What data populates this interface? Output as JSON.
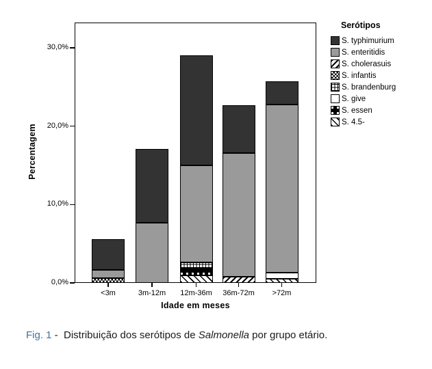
{
  "caption": {
    "fig_label": "Fig. 1",
    "separator": " -  ",
    "text_before": "Distribuição dos serótipos de ",
    "italic_word": "Salmonella",
    "text_after": " por grupo etário.",
    "fig_label_color": "#41719c"
  },
  "chart_data": {
    "type": "bar",
    "stacked": true,
    "title": "",
    "xlabel": "Idade em meses",
    "ylabel": "Percentagem",
    "legend_title": "Serótipos",
    "legend_position": "right",
    "grid": false,
    "ylim": [
      0,
      33.2
    ],
    "y_ticks": [
      {
        "label": "0,0%",
        "value": 0
      },
      {
        "label": "10,0%",
        "value": 10
      },
      {
        "label": "20,0%",
        "value": 20
      },
      {
        "label": "30,0%",
        "value": 30
      }
    ],
    "categories": [
      "<3m",
      "3m-12m",
      "12m-36m",
      "36m-72m",
      ">72m"
    ],
    "series": [
      {
        "name": "S. typhimurium",
        "swatch": "dark",
        "color": "#333333",
        "values": [
          3.9,
          9.4,
          14.0,
          6.1,
          2.9
        ]
      },
      {
        "name": "S. enteritidis",
        "swatch": "gray",
        "color": "#9a9a9a",
        "values": [
          1.1,
          7.7,
          12.4,
          15.8,
          21.5
        ]
      },
      {
        "name": "S. cholerasuis",
        "swatch": "hatch-fwd",
        "color": "pattern-diagonal-up",
        "values": [
          0,
          0,
          0,
          0.75,
          0
        ]
      },
      {
        "name": "S. infantis",
        "swatch": "checker",
        "color": "pattern-checker",
        "values": [
          0.6,
          0,
          0,
          0,
          0
        ]
      },
      {
        "name": "S. brandenburg",
        "swatch": "grid",
        "color": "pattern-grid",
        "values": [
          0,
          0,
          0.8,
          0,
          0
        ]
      },
      {
        "name": "S. give",
        "swatch": "white",
        "color": "#ffffff",
        "values": [
          0,
          0,
          0,
          0,
          0.75
        ]
      },
      {
        "name": "S. essen",
        "swatch": "essen",
        "color": "pattern-black-white-squares",
        "values": [
          0,
          0,
          0.8,
          0,
          0
        ]
      },
      {
        "name": "S. 4.5-",
        "swatch": "hatch-back",
        "color": "pattern-diagonal-down",
        "values": [
          0,
          0,
          1.0,
          0,
          0.55
        ]
      }
    ]
  }
}
